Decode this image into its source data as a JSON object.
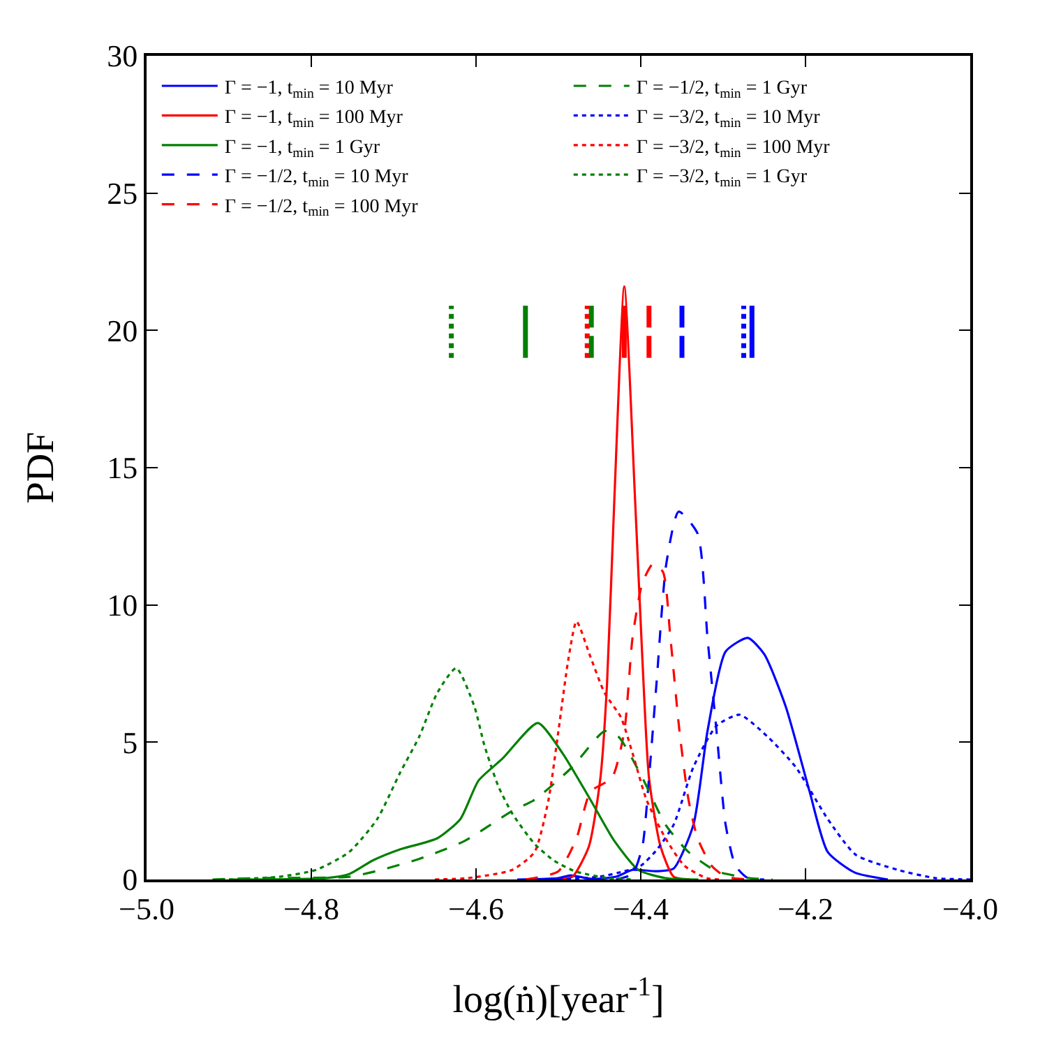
{
  "chart_data": {
    "type": "line",
    "xlabel": "log(ṅ)[year$^{-1}$]",
    "ylabel": "PDF",
    "xlim": [
      -5.0,
      -4.0
    ],
    "ylim": [
      0,
      30
    ],
    "xticks": [
      {
        "value": -5.0,
        "label": "−5.0"
      },
      {
        "value": -4.8,
        "label": "−4.8"
      },
      {
        "value": -4.6,
        "label": "−4.6"
      },
      {
        "value": -4.4,
        "label": "−4.4"
      },
      {
        "value": -4.2,
        "label": "−4.2"
      },
      {
        "value": -4.0,
        "label": "−4.0"
      }
    ],
    "yticks": [
      0,
      5,
      10,
      15,
      20,
      25,
      30
    ],
    "grid": false,
    "legend": "top",
    "marker": "none",
    "series": [
      {
        "name": "Γ = −1, t$_{min}$ = 10 Myr",
        "color": "#0000ff",
        "line_style": "solid",
        "x": [
          -4.55,
          -4.5,
          -4.485,
          -4.46,
          -4.43,
          -4.41,
          -4.38,
          -4.36,
          -4.336,
          -4.319,
          -4.297,
          -4.27,
          -4.25,
          -4.224,
          -4.195,
          -4.173,
          -4.14,
          -4.1
        ],
        "values": [
          0,
          0.05,
          0.15,
          0.02,
          0.1,
          0.35,
          0.3,
          0.4,
          2.0,
          5.4,
          8.3,
          8.8,
          8.2,
          6.3,
          3.2,
          1.0,
          0.25,
          0
        ]
      },
      {
        "name": "Γ = −1, t$_{min}$ = 100 Myr",
        "color": "#ff0000",
        "line_style": "solid",
        "x": [
          -4.5,
          -4.483,
          -4.463,
          -4.449,
          -4.441,
          -4.432,
          -4.42,
          -4.407,
          -4.398,
          -4.39,
          -4.376,
          -4.36,
          -4.34
        ],
        "values": [
          0,
          0.1,
          1.2,
          3.7,
          7.1,
          13.9,
          21.6,
          13.9,
          8.0,
          3.7,
          1.2,
          0.1,
          0
        ]
      },
      {
        "name": "Γ = −1, t$_{min}$ = 1 Gyr",
        "color": "#008000",
        "line_style": "solid",
        "x": [
          -4.9,
          -4.783,
          -4.754,
          -4.725,
          -4.692,
          -4.647,
          -4.619,
          -4.597,
          -4.568,
          -4.525,
          -4.495,
          -4.461,
          -4.432,
          -4.403,
          -4.37,
          -4.33
        ],
        "values": [
          0,
          0.05,
          0.2,
          0.7,
          1.1,
          1.5,
          2.2,
          3.6,
          4.4,
          5.7,
          4.6,
          2.9,
          1.4,
          0.35,
          0.05,
          0
        ]
      },
      {
        "name": "Γ = −1/2, t$_{min}$ = 10 Myr",
        "color": "#0000ff",
        "line_style": "dashed",
        "x": [
          -4.43,
          -4.41,
          -4.398,
          -4.39,
          -4.381,
          -4.369,
          -4.354,
          -4.331,
          -4.319,
          -4.308,
          -4.297,
          -4.285,
          -4.27,
          -4.25
        ],
        "values": [
          0,
          0.2,
          1.2,
          3.7,
          7.1,
          11.5,
          13.4,
          12.6,
          8.8,
          5.4,
          2.0,
          0.5,
          0.05,
          0
        ]
      },
      {
        "name": "Γ = −1/2, t$_{min}$ = 100 Myr",
        "color": "#ff0000",
        "line_style": "dashed",
        "x": [
          -4.54,
          -4.5,
          -4.478,
          -4.461,
          -4.435,
          -4.42,
          -4.41,
          -4.398,
          -4.385,
          -4.373,
          -4.364,
          -4.353,
          -4.342,
          -4.331,
          -4.314,
          -4.297,
          -4.27
        ],
        "values": [
          0,
          0.3,
          1.5,
          3.2,
          3.7,
          5.4,
          8.8,
          10.8,
          11.5,
          11.2,
          8.8,
          5.4,
          2.9,
          1.5,
          0.5,
          0.1,
          0
        ]
      },
      {
        "name": "Γ = −1/2, t$_{min}$ = 1 Gyr",
        "color": "#008000",
        "line_style": "dashed",
        "x": [
          -4.92,
          -4.868,
          -4.754,
          -4.715,
          -4.669,
          -4.614,
          -4.556,
          -4.529,
          -4.483,
          -4.444,
          -4.427,
          -4.398,
          -4.37,
          -4.342,
          -4.308,
          -4.268,
          -4.24
        ],
        "values": [
          0,
          0.05,
          0.1,
          0.35,
          0.75,
          1.4,
          2.5,
          2.9,
          4.1,
          5.4,
          5.2,
          3.7,
          2.0,
          1.0,
          0.3,
          0.05,
          0
        ]
      },
      {
        "name": "Γ = −3/2, t$_{min}$ = 10 Myr",
        "color": "#0000ff",
        "line_style": "dotted",
        "x": [
          -4.5,
          -4.45,
          -4.42,
          -4.4,
          -4.38,
          -4.36,
          -4.336,
          -4.308,
          -4.28,
          -4.246,
          -4.212,
          -4.173,
          -4.139,
          -4.088,
          -4.042,
          -4.0
        ],
        "values": [
          0,
          0.1,
          0.3,
          0.5,
          1.1,
          2.0,
          4.1,
          5.6,
          6.0,
          5.2,
          4.1,
          2.2,
          0.9,
          0.35,
          0.05,
          0
        ]
      },
      {
        "name": "Γ = −3/2, t$_{min}$ = 100 Myr",
        "color": "#ff0000",
        "line_style": "dotted",
        "x": [
          -4.65,
          -4.61,
          -4.556,
          -4.529,
          -4.512,
          -4.5,
          -4.488,
          -4.478,
          -4.461,
          -4.444,
          -4.424,
          -4.41,
          -4.393,
          -4.37,
          -4.347,
          -4.32,
          -4.3
        ],
        "values": [
          0,
          0.05,
          0.35,
          1.0,
          2.9,
          5.4,
          8.0,
          9.4,
          8.1,
          6.8,
          5.9,
          4.6,
          2.9,
          1.5,
          0.5,
          0.05,
          0
        ]
      },
      {
        "name": "Γ = −3/2, t$_{min}$ = 1 Gyr",
        "color": "#008000",
        "line_style": "dotted",
        "x": [
          -4.9,
          -4.839,
          -4.794,
          -4.754,
          -4.72,
          -4.692,
          -4.669,
          -4.647,
          -4.624,
          -4.602,
          -4.59,
          -4.573,
          -4.556,
          -4.529,
          -4.506,
          -4.48,
          -4.44,
          -4.41
        ],
        "values": [
          0,
          0.1,
          0.35,
          1.0,
          2.2,
          3.9,
          5.2,
          6.8,
          7.7,
          6.3,
          4.9,
          3.4,
          2.4,
          1.3,
          0.7,
          0.3,
          0.05,
          0
        ]
      },
      {
        "color": "#0000ff",
        "line_style": "solid",
        "x": [
          -4.265,
          -4.265
        ],
        "values": [
          19.0,
          20.9
        ]
      },
      {
        "color": "#ff0000",
        "line_style": "solid",
        "x": [
          -4.42,
          -4.42
        ],
        "values": [
          19.0,
          20.9
        ]
      },
      {
        "color": "#008000",
        "line_style": "solid",
        "x": [
          -4.54,
          -4.54
        ],
        "values": [
          19.0,
          20.9
        ]
      },
      {
        "color": "#0000ff",
        "line_style": "dashed",
        "x": [
          -4.35,
          -4.35
        ],
        "values": [
          19.0,
          20.9
        ]
      },
      {
        "color": "#ff0000",
        "line_style": "dashed",
        "x": [
          -4.39,
          -4.39
        ],
        "values": [
          19.0,
          20.9
        ]
      },
      {
        "color": "#008000",
        "line_style": "dashed",
        "x": [
          -4.46,
          -4.46
        ],
        "values": [
          19.0,
          20.9
        ]
      },
      {
        "color": "#0000ff",
        "line_style": "dotted",
        "x": [
          -4.275,
          -4.275
        ],
        "values": [
          19.0,
          20.9
        ]
      },
      {
        "color": "#ff0000",
        "line_style": "dotted",
        "x": [
          -4.465,
          -4.465
        ],
        "values": [
          19.0,
          20.9
        ]
      },
      {
        "color": "#008000",
        "line_style": "dotted",
        "x": [
          -4.63,
          -4.63
        ],
        "values": [
          19.0,
          20.9
        ]
      }
    ]
  }
}
